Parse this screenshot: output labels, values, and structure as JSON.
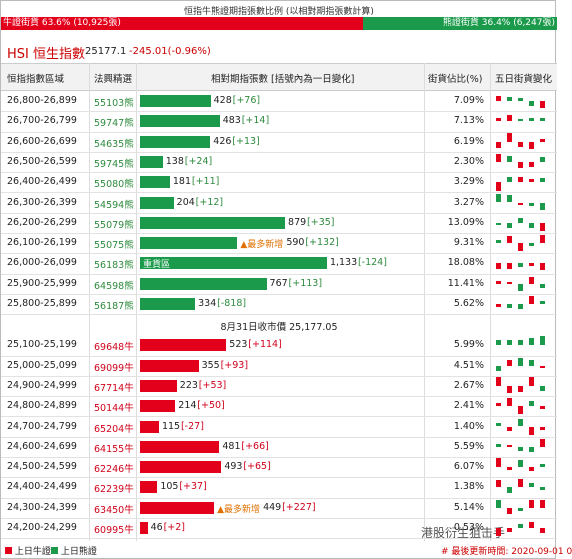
{
  "ratio": {
    "title": "恒指牛熊證期指張數比例 (以相對期指張數計算)",
    "bull": "牛證街貨 63.6% (10,925張)",
    "bear": "熊證街貨 36.4% (6,247張)"
  },
  "index": {
    "name": "HSI 恒生指數",
    "value": "25177.1",
    "change": "-245.01(-0.96%)"
  },
  "table": {
    "columns": [
      "恒指指數區域",
      "法興精選",
      "相對期指張數 [括號內為一日變化]",
      "街貨佔比(%)",
      "五日街貨變化"
    ],
    "bear_rows": [
      {
        "range": "26,800-26,899",
        "code": "55103熊",
        "value": 428,
        "change": "[+76]",
        "share": "7.09%"
      },
      {
        "range": "26,700-26,799",
        "code": "59747熊",
        "value": 483,
        "change": "[+14]",
        "share": "7.13%"
      },
      {
        "range": "26,600-26,699",
        "code": "54635熊",
        "value": 426,
        "change": "[+13]",
        "share": "6.19%"
      },
      {
        "range": "26,500-26,599",
        "code": "59745熊",
        "value": 138,
        "change": "[+24]",
        "share": "2.30%"
      },
      {
        "range": "26,400-26,499",
        "code": "55080熊",
        "value": 181,
        "change": "[+11]",
        "share": "3.29%"
      },
      {
        "range": "26,300-26,399",
        "code": "54594熊",
        "value": 204,
        "change": "[+12]",
        "share": "3.27%"
      },
      {
        "range": "26,200-26,299",
        "code": "55079熊",
        "value": 879,
        "change": "[+35]",
        "share": "13.09%"
      },
      {
        "range": "26,100-26,199",
        "code": "55075熊",
        "value": 590,
        "change": "[+132]",
        "share": "9.31%",
        "tag": "▲最多新增"
      },
      {
        "range": "26,000-26,099",
        "code": "56183熊",
        "value": 1133,
        "value_label": "1,133",
        "change": "[-124]",
        "share": "18.08%",
        "inbar": "重貨區"
      },
      {
        "range": "25,900-25,999",
        "code": "64598熊",
        "value": 767,
        "change": "[+113]",
        "share": "11.41%"
      },
      {
        "range": "25,800-25,899",
        "code": "56187熊",
        "value": 334,
        "change": "[-818]",
        "share": "5.62%"
      }
    ],
    "divider": "8月31日收市價 25,177.05",
    "bull_rows": [
      {
        "range": "25,100-25,199",
        "code": "69648牛",
        "value": 523,
        "change": "[+114]",
        "share": "5.99%"
      },
      {
        "range": "25,000-25,099",
        "code": "69099牛",
        "value": 355,
        "change": "[+93]",
        "share": "4.51%"
      },
      {
        "range": "24,900-24,999",
        "code": "67714牛",
        "value": 223,
        "change": "[+53]",
        "share": "2.67%"
      },
      {
        "range": "24,800-24,899",
        "code": "50144牛",
        "value": 214,
        "change": "[+50]",
        "share": "2.41%"
      },
      {
        "range": "24,700-24,799",
        "code": "65204牛",
        "value": 115,
        "change": "[-27]",
        "share": "1.40%"
      },
      {
        "range": "24,600-24,699",
        "code": "64155牛",
        "value": 481,
        "change": "[+66]",
        "share": "5.59%"
      },
      {
        "range": "24,500-24,599",
        "code": "62246牛",
        "value": 493,
        "change": "[+65]",
        "share": "6.07%"
      },
      {
        "range": "24,400-24,499",
        "code": "62239牛",
        "value": 105,
        "change": "[+37]",
        "share": "1.38%"
      },
      {
        "range": "24,300-24,399",
        "code": "63450牛",
        "value": 449,
        "change": "[+227]",
        "share": "5.14%",
        "tag": "▲最多新增"
      },
      {
        "range": "24,200-24,299",
        "code": "60995牛",
        "value": 46,
        "change": "[+2]",
        "share": "0.53%"
      }
    ]
  },
  "footer": {
    "legend": [
      "上日牛證",
      "上日熊證"
    ],
    "updated": "# 最後更新時間: 2020-09-01 0",
    "watermark": "港股衍生狙击手"
  }
}
